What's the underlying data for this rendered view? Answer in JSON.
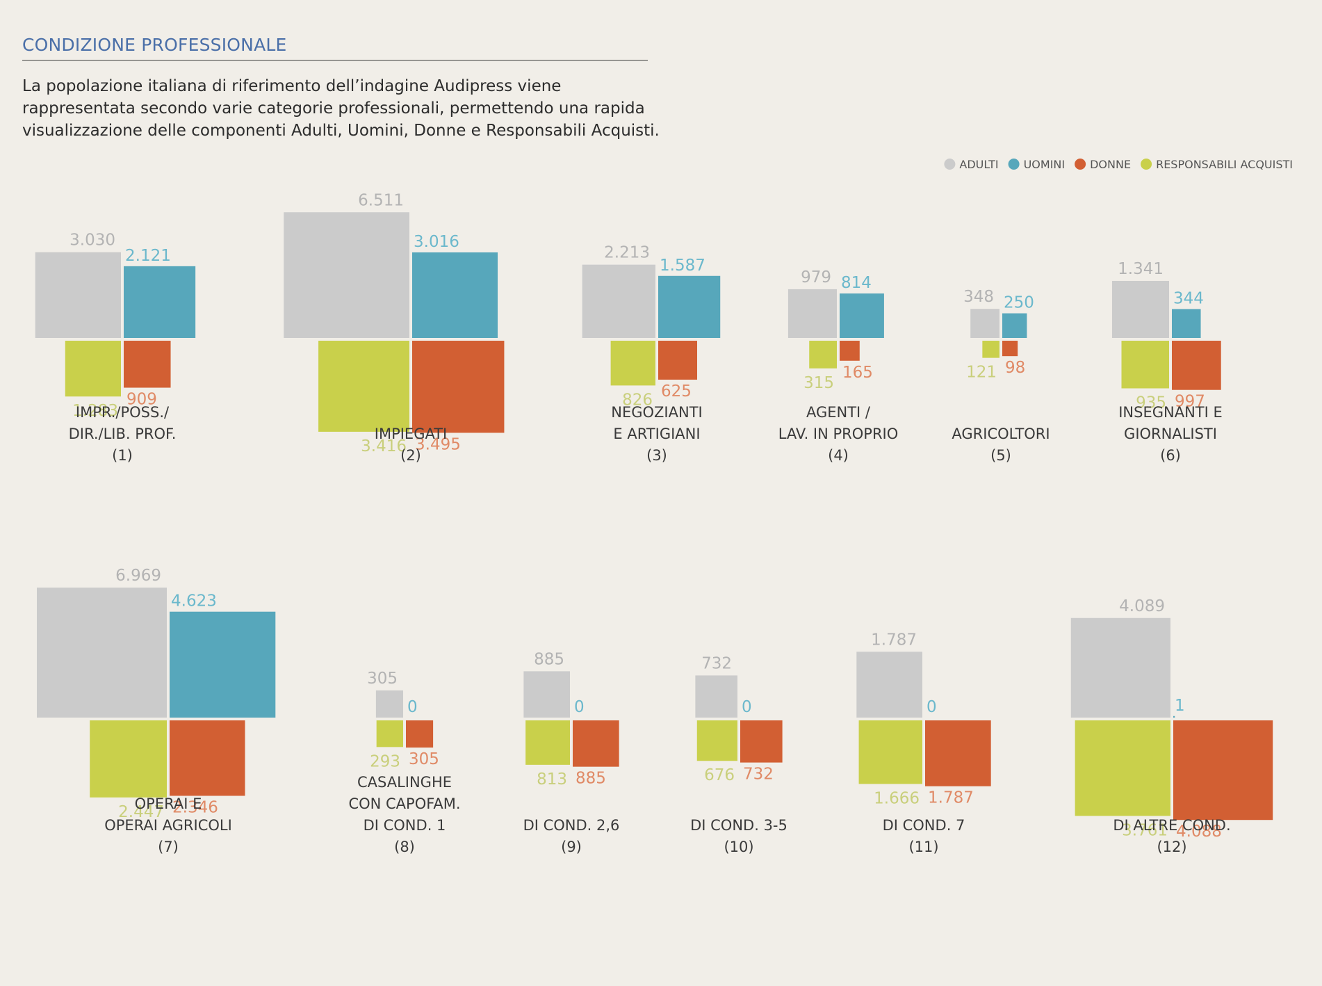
{
  "page": {
    "title": "CONDIZIONE PROFESSIONALE",
    "intro": "La popolazione italiana di riferimento dell’indagine Audipress viene rappresentata secondo varie categorie professionali, permettendo una rapida visualizzazione delle componenti Adulti, Uomini, Donne e Responsabili Acquisti."
  },
  "colors": {
    "adulti": "#cbcbcb",
    "uomini": "#57a7bb",
    "donne": "#d25f33",
    "responsabili": "#c9d04b",
    "adulti_label": "#b3b3b3",
    "uomini_label": "#6bb8cc",
    "donne_label": "#e08a66",
    "responsabili_label": "#c9cf7c"
  },
  "chart_data": {
    "type": "square-area",
    "title": "CONDIZIONE PROFESSIONALE",
    "legend": [
      {
        "key": "adulti",
        "label": "ADULTI"
      },
      {
        "key": "uomini",
        "label": "UOMINI"
      },
      {
        "key": "donne",
        "label": "DONNE"
      },
      {
        "key": "responsabili",
        "label": "RESPONSABILI ACQUISTI"
      }
    ],
    "legend_position": "top-right",
    "categories": [
      {
        "id": 1,
        "label": [
          "IMPR./POSS./",
          "DIR./LIB. PROF.",
          "(1)"
        ],
        "adulti": "3.030",
        "uomini": "2.121",
        "donne": "909",
        "responsabili": "1.283"
      },
      {
        "id": 2,
        "label": [
          "IMPIEGATI",
          "(2)"
        ],
        "adulti": "6.511",
        "uomini": "3.016",
        "donne": "3.495",
        "responsabili": "3.416"
      },
      {
        "id": 3,
        "label": [
          "NEGOZIANTI",
          "E ARTIGIANI",
          "(3)"
        ],
        "adulti": "2.213",
        "uomini": "1.587",
        "donne": "625",
        "responsabili": "826"
      },
      {
        "id": 4,
        "label": [
          "AGENTI /",
          "LAV. IN PROPRIO",
          "(4)"
        ],
        "adulti": "979",
        "uomini": "814",
        "donne": "165",
        "responsabili": "315"
      },
      {
        "id": 5,
        "label": [
          "AGRICOLTORI",
          "(5)"
        ],
        "adulti": "348",
        "uomini": "250",
        "donne": "98",
        "responsabili": "121"
      },
      {
        "id": 6,
        "label": [
          "INSEGNANTI E",
          "GIORNALISTI",
          "(6)"
        ],
        "adulti": "1.341",
        "uomini": "344",
        "donne": "997",
        "responsabili": "935"
      },
      {
        "id": 7,
        "label": [
          "OPERAI E",
          "OPERAI AGRICOLI",
          "(7)"
        ],
        "adulti": "6.969",
        "uomini": "4.623",
        "donne": "2.346",
        "responsabili": "2.447"
      },
      {
        "id": 8,
        "label": [
          "CASALINGHE",
          "CON CAPOFAM.",
          "DI COND. 1",
          "(8)"
        ],
        "adulti": "305",
        "uomini": "0",
        "donne": "305",
        "responsabili": "293"
      },
      {
        "id": 9,
        "label": [
          "DI COND. 2,6",
          "(9)"
        ],
        "adulti": "885",
        "uomini": "0",
        "donne": "885",
        "responsabili": "813"
      },
      {
        "id": 10,
        "label": [
          "DI COND. 3-5",
          "(10)"
        ],
        "adulti": "732",
        "uomini": "0",
        "donne": "732",
        "responsabili": "676"
      },
      {
        "id": 11,
        "label": [
          "DI COND. 7",
          "(11)"
        ],
        "adulti": "1.787",
        "uomini": "0",
        "donne": "1.787",
        "responsabili": "1.666"
      },
      {
        "id": 12,
        "label": [
          "DI ALTRE COND.",
          "(12)"
        ],
        "adulti": "4.089",
        "uomini": "1",
        "donne": "4.088",
        "responsabili": "3.761"
      }
    ]
  }
}
